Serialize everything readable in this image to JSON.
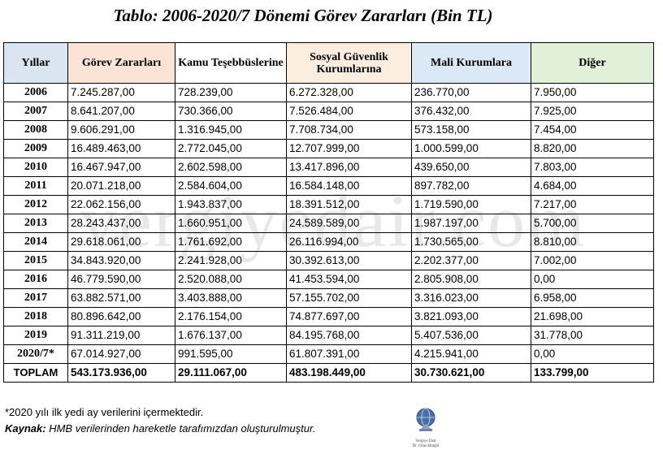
{
  "title": "Tablo: 2006-2020/7 Dönemi Görev Zararları (Bin TL)",
  "headers": {
    "yillar": "Yıllar",
    "gorev": "Görev Zararları",
    "kamu": "Kamu Teşebbüslerine",
    "sosyal": "Sosyal Güvenlik Kurumlarına",
    "mali": "Mali Kurumlara",
    "diger": "Diğer"
  },
  "header_colors": {
    "yillar": "#dbe5f1",
    "gorev": "#fbe4d5",
    "sosyal": "#fbeee0",
    "mali": "#dbe9f6",
    "diger": "#e2efd9"
  },
  "rows": [
    [
      "2006",
      "7.245.287,00",
      "728.239,00",
      "6.272.328,00",
      "236.770,00",
      "7.950,00"
    ],
    [
      "2007",
      "8.641.207,00",
      "730.366,00",
      "7.526.484,00",
      "376.432,00",
      "7.925,00"
    ],
    [
      "2008",
      "9.606.291,00",
      "1.316.945,00",
      "7.708.734,00",
      "573.158,00",
      "7.454,00"
    ],
    [
      "2009",
      "16.489.463,00",
      "2.772.045,00",
      "12.707.999,00",
      "1.000.599,00",
      "8.820,00"
    ],
    [
      "2010",
      "16.467.947,00",
      "2.602.598,00",
      "13.417.896,00",
      "439.650,00",
      "7.803,00"
    ],
    [
      "2011",
      "20.071.218,00",
      "2.584.604,00",
      "16.584.148,00",
      "897.782,00",
      "4.684,00"
    ],
    [
      "2012",
      "22.062.156,00",
      "1.943.837,00",
      "18.391.512,00",
      "1.719.590,00",
      "7.217,00"
    ],
    [
      "2013",
      "28.243.437,00",
      "1.660.951,00",
      "24.589.589,00",
      "1.987.197,00",
      "5.700,00"
    ],
    [
      "2014",
      "29.618.061,00",
      "1.761.692,00",
      "26.116.994,00",
      "1.730.565,00",
      "8.810,00"
    ],
    [
      "2015",
      "34.843.920,00",
      "2.241.928,00",
      "30.392.613,00",
      "2.202.377,00",
      "7.002,00"
    ],
    [
      "2016",
      "46.779.590,00",
      "2.520.088,00",
      "41.453.594,00",
      "2.805.908,00",
      "0,00"
    ],
    [
      "2017",
      "63.882.571,00",
      "3.403.888,00",
      "57.155.702,00",
      "3.316.023,00",
      "6.958,00"
    ],
    [
      "2018",
      "80.896.642,00",
      "2.176.154,00",
      "74.877.697,00",
      "3.821.093,00",
      "21.698,00"
    ],
    [
      "2019",
      "91.311.219,00",
      "1.676.137,00",
      "84.195.768,00",
      "5.407.536,00",
      "31.778,00"
    ],
    [
      "2020/7*",
      "67.014.927,00",
      "991.595,00",
      "61.807.391,00",
      "4.215.941,00",
      "0,00"
    ]
  ],
  "total": [
    "TOPLAM",
    "543.173.936,00",
    "29.111.067,00",
    "483.198.449,00",
    "30.730.621,00",
    "133.799,00"
  ],
  "watermark": "vergiyedair.com",
  "footnote": "*2020 yılı ilk yedi ay verilerini içermektedir.",
  "source": {
    "label": "Kaynak:",
    "text": " HMB verilerinden hareketle tarafımızdan oluşturulmuştur."
  },
  "logo": {
    "line1": "Vergiye Dair",
    "line2": "Dr. Ozan Bingöl"
  }
}
